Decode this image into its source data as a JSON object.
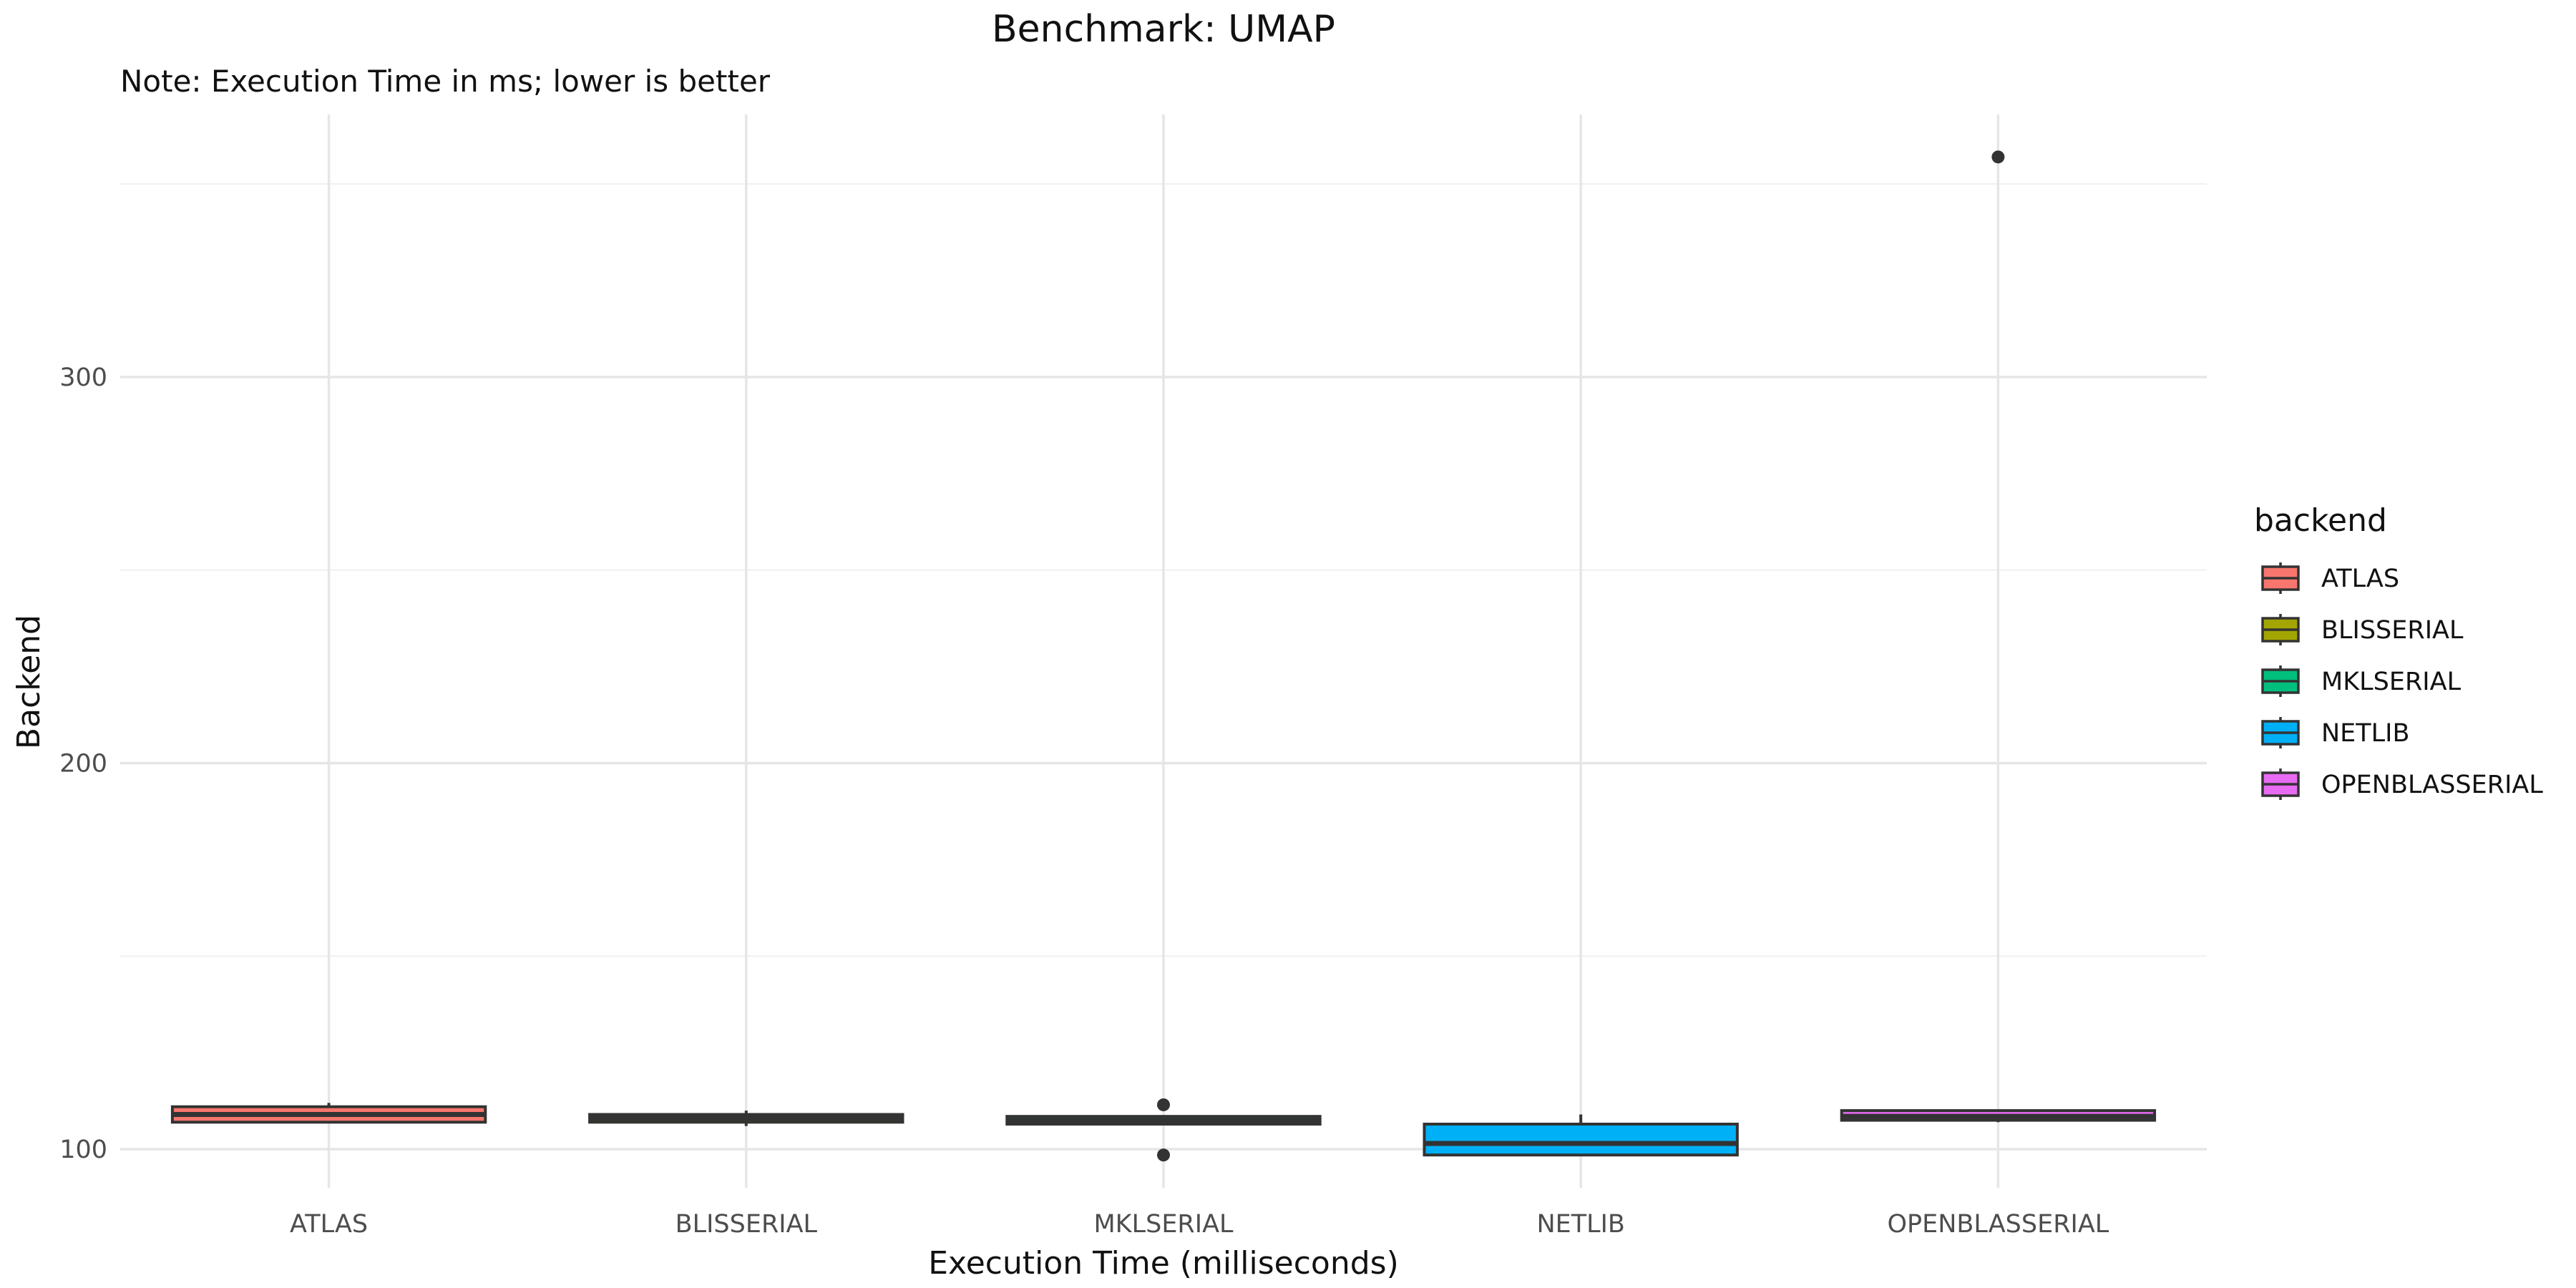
{
  "chart_data": {
    "type": "boxplot",
    "title": "Benchmark: UMAP",
    "subtitle": "Note: Execution Time in ms; lower is better",
    "xlabel": "Execution Time (milliseconds)",
    "ylabel": "Backend",
    "ylim": [
      90,
      368
    ],
    "yticks": [
      100,
      200,
      300
    ],
    "grid": true,
    "legend": {
      "title": "backend",
      "position": "right"
    },
    "categories": [
      "ATLAS",
      "BLISSERIAL",
      "MKLSERIAL",
      "NETLIB",
      "OPENBLASSERIAL"
    ],
    "series": [
      {
        "name": "ATLAS",
        "color": "#F8766D",
        "whisker_low": 107,
        "q1": 107,
        "median": 109,
        "q3": 111,
        "whisker_high": 112,
        "outliers": []
      },
      {
        "name": "BLISSERIAL",
        "color": "#A3A500",
        "whisker_low": 106,
        "q1": 107,
        "median": 108,
        "q3": 109,
        "whisker_high": 110,
        "outliers": []
      },
      {
        "name": "MKLSERIAL",
        "color": "#00BF7D",
        "whisker_low": 106.5,
        "q1": 106.5,
        "median": 107.5,
        "q3": 108.5,
        "whisker_high": 108.5,
        "outliers": [
          111.5,
          98.5
        ]
      },
      {
        "name": "NETLIB",
        "color": "#00B0F6",
        "whisker_low": 98.5,
        "q1": 98.5,
        "median": 101.5,
        "q3": 106.5,
        "whisker_high": 109,
        "outliers": []
      },
      {
        "name": "OPENBLASSERIAL",
        "color": "#E76BF3",
        "whisker_low": 107,
        "q1": 107.5,
        "median": 108.5,
        "q3": 110,
        "whisker_high": 110,
        "outliers": [
          357
        ]
      }
    ]
  }
}
